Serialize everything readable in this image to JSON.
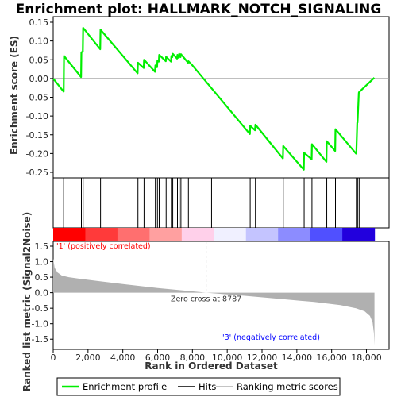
{
  "chart_data": {
    "type": "line",
    "title": "Enrichment plot: HALLMARK_NOTCH_SIGNALING",
    "top_panel": {
      "ylabel": "Enrichment score (ES)",
      "ylim": [
        -0.25,
        0.15
      ],
      "yticks": [
        -0.25,
        -0.2,
        -0.15,
        -0.1,
        -0.05,
        0.0,
        0.05,
        0.1,
        0.15
      ],
      "ytick_labels": [
        "-0.25",
        "-0.20",
        "-0.15",
        "-0.10",
        "-0.05",
        "0.00",
        "0.05",
        "0.10",
        "0.15"
      ],
      "series": [
        {
          "name": "Enrichment profile",
          "color": "#00ee00",
          "x": [
            0,
            600,
            620,
            1600,
            1620,
            1700,
            1720,
            2700,
            2720,
            4850,
            4870,
            5200,
            5220,
            5850,
            5870,
            5970,
            5990,
            6070,
            6090,
            6470,
            6490,
            6770,
            6790,
            6850,
            6870,
            7120,
            7140,
            7220,
            7240,
            7320,
            7340,
            7750,
            7770,
            8000,
            11300,
            11320,
            11600,
            11620,
            13200,
            13220,
            14400,
            14420,
            14850,
            14870,
            15700,
            15720,
            16200,
            16220,
            17400,
            17420,
            17470,
            17490,
            17560,
            17580,
            18450
          ],
          "y": [
            0.0,
            -0.035,
            0.06,
            0.004,
            0.07,
            0.072,
            0.135,
            0.078,
            0.13,
            0.014,
            0.042,
            0.028,
            0.05,
            0.018,
            0.035,
            0.03,
            0.048,
            0.045,
            0.063,
            0.046,
            0.058,
            0.045,
            0.06,
            0.057,
            0.066,
            0.053,
            0.063,
            0.055,
            0.066,
            0.057,
            0.065,
            0.042,
            0.046,
            0.035,
            -0.148,
            -0.126,
            -0.138,
            -0.123,
            -0.213,
            -0.18,
            -0.243,
            -0.198,
            -0.215,
            -0.175,
            -0.222,
            -0.167,
            -0.193,
            -0.135,
            -0.2,
            -0.198,
            -0.118,
            -0.117,
            -0.038,
            -0.036,
            0.002
          ]
        }
      ]
    },
    "hits": {
      "name": "Hits",
      "x": [
        600,
        1620,
        1720,
        2720,
        4870,
        5220,
        5870,
        5990,
        6090,
        6490,
        6790,
        6870,
        7140,
        7240,
        7340,
        7770,
        9100,
        11320,
        11620,
        13220,
        14420,
        14870,
        15720,
        16220,
        17420,
        17490,
        17580
      ]
    },
    "color_bar": {
      "colors": [
        "#ff0000",
        "#ff3a3a",
        "#ff6f6f",
        "#ffa0a0",
        "#ffd0ea",
        "#f0f0ff",
        "#c4c4ff",
        "#8c8cff",
        "#5050ff",
        "#2200dd"
      ]
    },
    "bottom_panel": {
      "ylabel": "Ranked list metric (Signal2Noise)",
      "xlabel": "Rank in Ordered Dataset",
      "ylim": [
        -1.75,
        1.5
      ],
      "yticks": [
        -1.5,
        -1.0,
        -0.5,
        0.0,
        0.5,
        1.0,
        1.5
      ],
      "ytick_labels": [
        "-1.5",
        "-1.0",
        "-0.5",
        "0.0",
        "0.5",
        "1.0",
        "1.5"
      ],
      "xlim": [
        0,
        19300
      ],
      "xticks": [
        0,
        2000,
        4000,
        6000,
        8000,
        10000,
        12000,
        14000,
        16000,
        18000
      ],
      "xtick_labels": [
        "0",
        "2,000",
        "4,000",
        "6,000",
        "8,000",
        "10,000",
        "12,000",
        "14,000",
        "16,000",
        "18,000"
      ],
      "series": [
        {
          "name": "Ranking metric scores",
          "color": "#b0b0b0",
          "x": [
            0,
            80,
            250,
            500,
            900,
            1500,
            2500,
            4000,
            6000,
            8787,
            11000,
            13000,
            15000,
            16500,
            17400,
            17900,
            18200,
            18350,
            18430,
            18460
          ],
          "y": [
            1.1,
            0.8,
            0.65,
            0.55,
            0.5,
            0.45,
            0.38,
            0.28,
            0.15,
            0.0,
            -0.1,
            -0.2,
            -0.3,
            -0.4,
            -0.5,
            -0.6,
            -0.75,
            -0.95,
            -1.3,
            -1.7
          ]
        }
      ],
      "zero_cross_rank": 8787,
      "annotations": {
        "zero_cross": "Zero cross at 8787",
        "positive": "'1' (positively correlated)",
        "negative": "'3' (negatively correlated)"
      }
    },
    "legend": {
      "placement": "bottom",
      "entries": [
        {
          "label": "Enrichment profile",
          "color": "#00ee00"
        },
        {
          "label": "Hits",
          "color": "#000000"
        },
        {
          "label": "Ranking metric scores",
          "color": "#b0b0b0"
        }
      ]
    },
    "colors": {
      "positive_label": "#ff0000",
      "negative_label": "#0000ff"
    }
  }
}
